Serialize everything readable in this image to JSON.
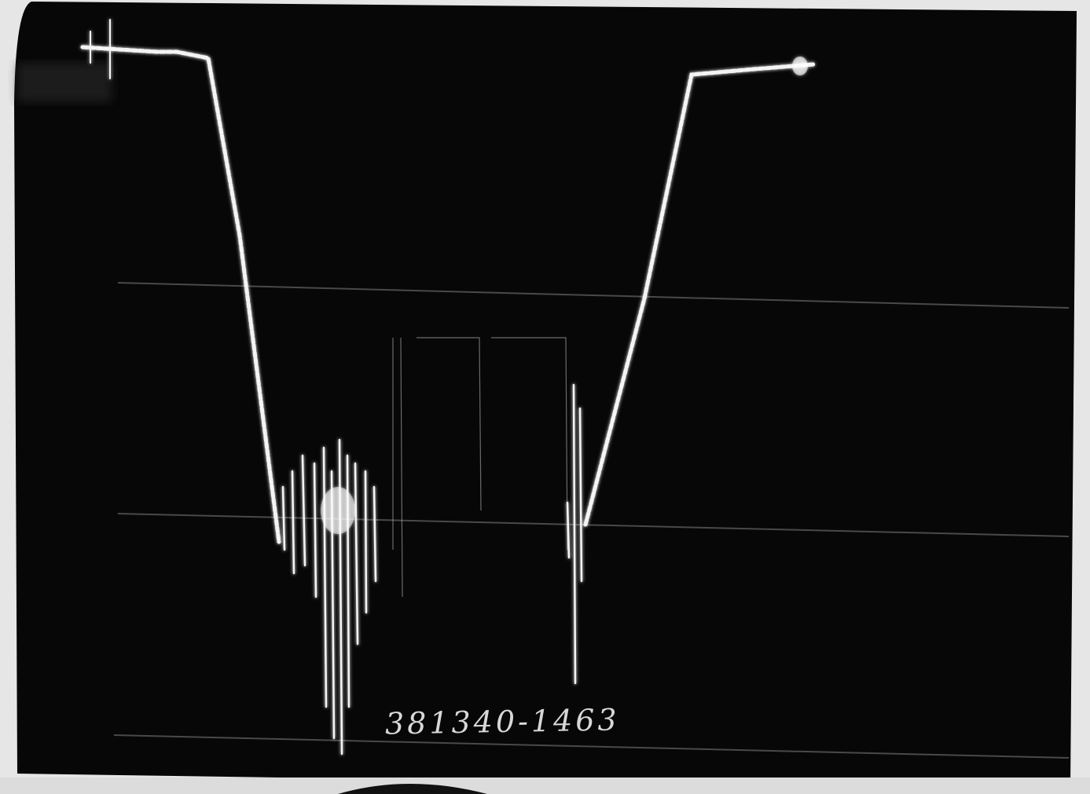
{
  "annotation": "381340-1463"
}
